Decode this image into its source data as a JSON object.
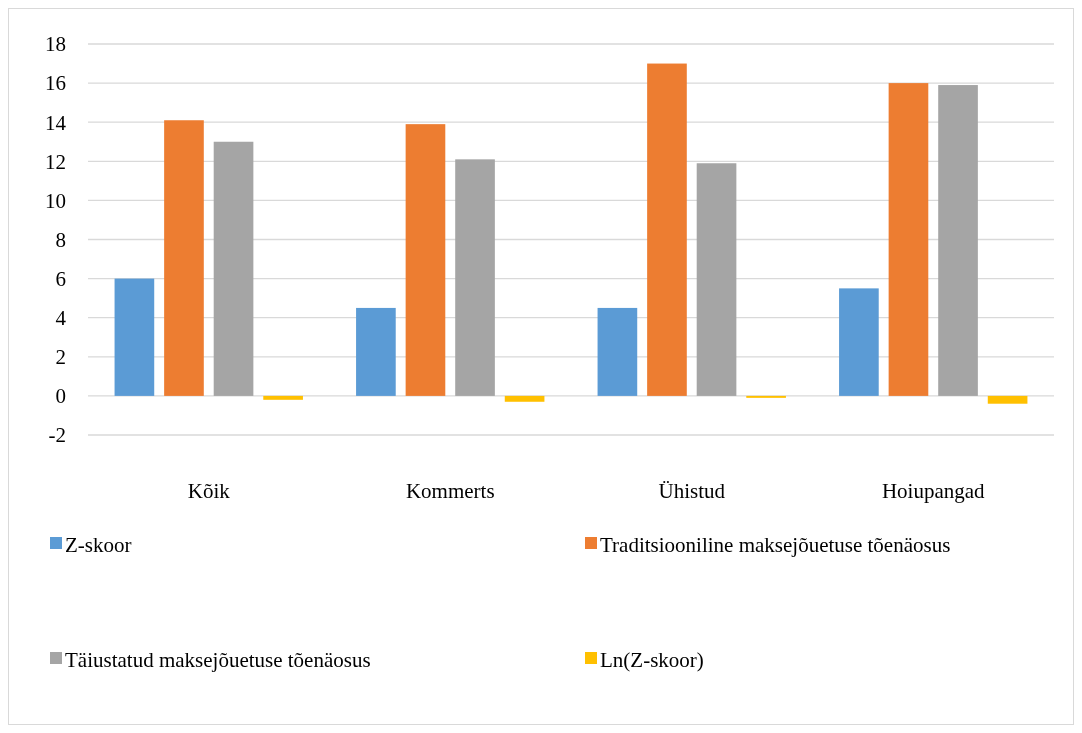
{
  "chart_data": {
    "type": "bar",
    "categories": [
      "Kõik",
      "Kommerts",
      "Ühistud",
      "Hoiupangad"
    ],
    "series": [
      {
        "name": "Z-skoor",
        "color": "#5b9bd5",
        "values": [
          6.0,
          4.5,
          4.5,
          5.5
        ]
      },
      {
        "name": "Traditsiooniline maksejõuetuse tõenäosus",
        "color": "#ed7d31",
        "values": [
          14.1,
          13.9,
          17.0,
          16.0
        ]
      },
      {
        "name": "Täiustatud maksejõuetuse tõenäosus",
        "color": "#a5a5a5",
        "values": [
          13.0,
          12.1,
          11.9,
          15.9
        ]
      },
      {
        "name": "Ln(Z-skoor)",
        "color": "#ffc000",
        "values": [
          -0.2,
          -0.3,
          -0.1,
          -0.4
        ]
      }
    ],
    "ylim": [
      -2,
      18
    ],
    "yticks": [
      -2,
      0,
      2,
      4,
      6,
      8,
      10,
      12,
      14,
      16,
      18
    ],
    "grid": "y",
    "legend": "bottom"
  }
}
